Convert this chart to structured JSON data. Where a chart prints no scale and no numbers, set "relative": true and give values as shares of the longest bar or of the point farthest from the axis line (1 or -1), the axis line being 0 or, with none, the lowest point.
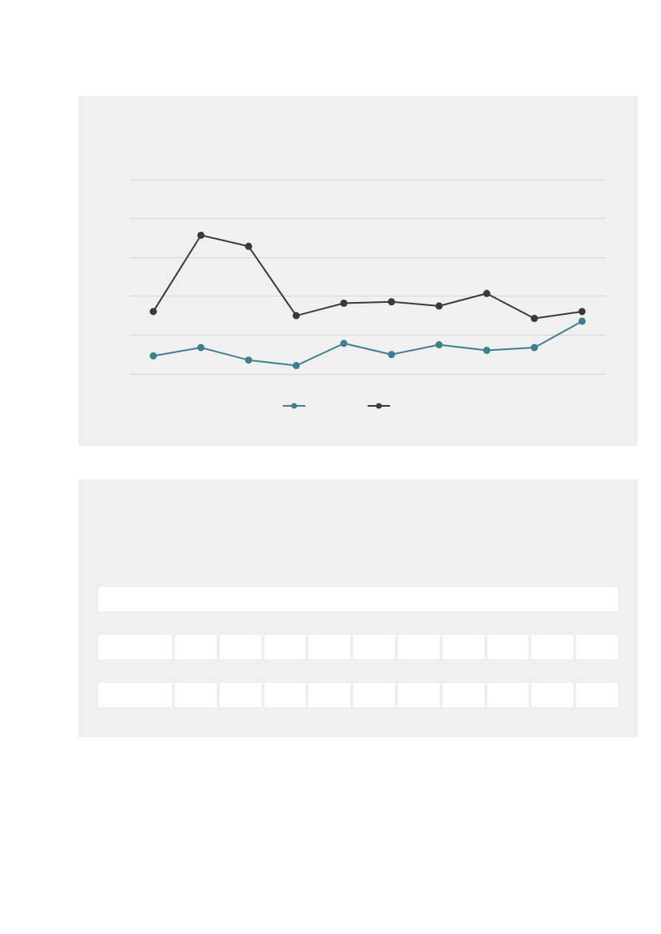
{
  "chart_data": {
    "type": "line",
    "relative": true,
    "categories": [
      null,
      null,
      null,
      null,
      null,
      null,
      null,
      null,
      null,
      null
    ],
    "series": [
      {
        "color": "#3d7f8e",
        "values": [
          0.13,
          0.19,
          0.1,
          0.06,
          0.22,
          0.14,
          0.21,
          0.17,
          0.19,
          0.38
        ]
      },
      {
        "color": "#3a3a3a",
        "values": [
          0.45,
          1,
          0.92,
          0.42,
          0.51,
          0.52,
          0.49,
          0.58,
          0.4,
          0.45
        ]
      }
    ],
    "grid": "y",
    "marker": "circle",
    "line_style": "solid"
  }
}
